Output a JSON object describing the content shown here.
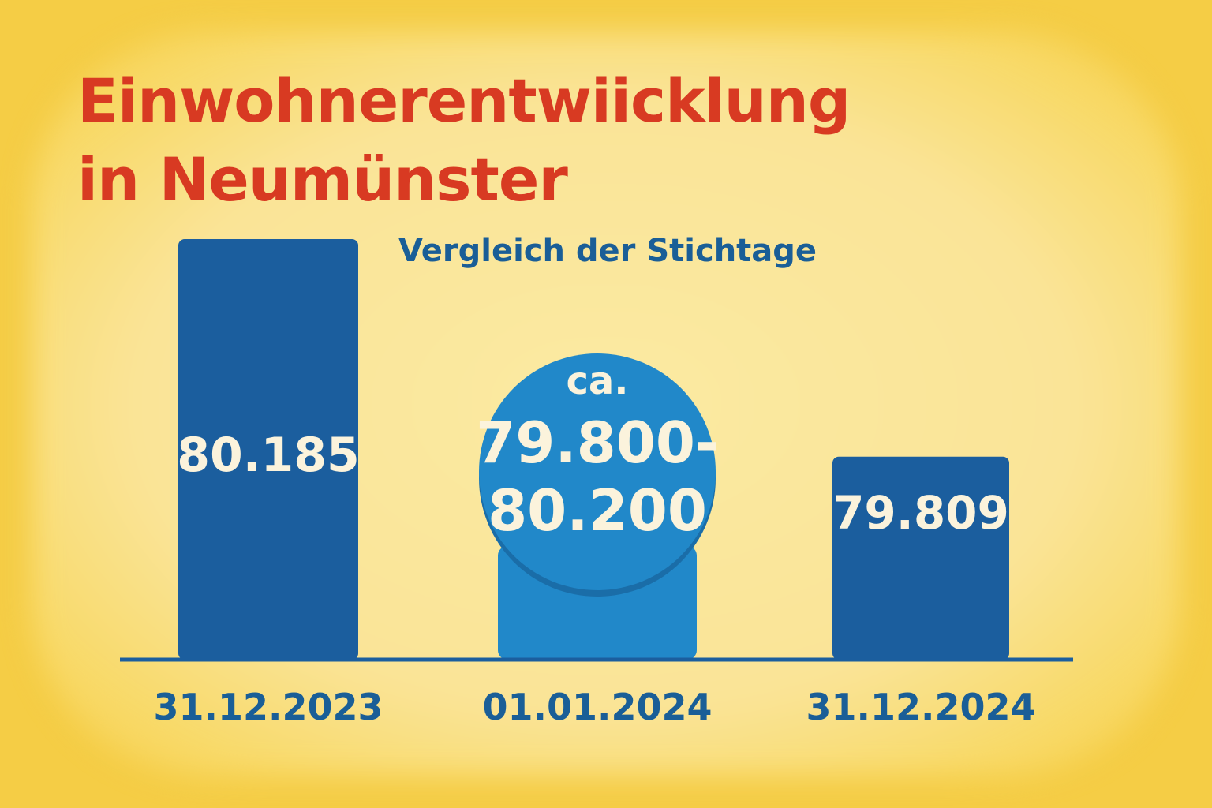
{
  "chart_data": {
    "type": "bar",
    "title": "Einwohnerentwiicklung\nin Neumünster",
    "subtitle": "Vergleich der Stichtage",
    "categories": [
      "31.12.2023",
      "01.01.2024",
      "31.12.2024"
    ],
    "values": [
      80185,
      80000,
      79809
    ],
    "data_labels": [
      "80.185",
      null,
      "79.809"
    ],
    "estimate_prefix": "ca.",
    "estimate_range_lines": [
      "79.800-",
      "80.200"
    ],
    "estimate_range": [
      79800,
      80200
    ],
    "xlabel": "",
    "ylabel": "",
    "grid": false,
    "legend": "none",
    "colors": {
      "bar": "#1b5e9e",
      "estimate_bar": "#2188c9",
      "estimate_shadow": "#1a6da8",
      "axis": "#1b5e9e",
      "title": "#d83a22",
      "subtitle": "#1a5e97",
      "value_text": "#fbf3dc",
      "category_text": "#1a5e97"
    }
  }
}
